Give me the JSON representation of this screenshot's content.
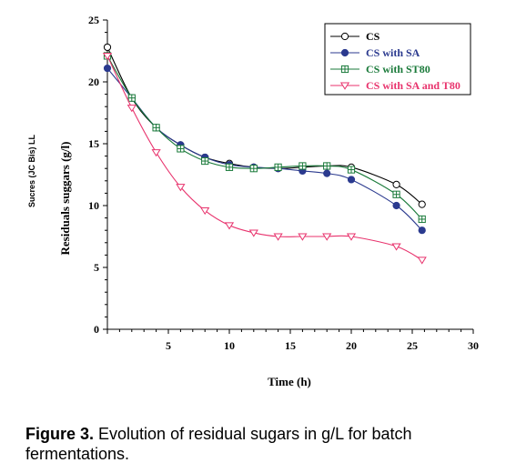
{
  "caption": {
    "label": "Figure 3.",
    "text": " Evolution of residual sugars in g/L for batch fermentations."
  },
  "chart_data": {
    "type": "line",
    "xlabel": "Time (h)",
    "ylabel": "Residuals suggars (g/l)",
    "side_label": "Sucres (JC Bis) LL",
    "xlim": [
      0,
      30
    ],
    "ylim": [
      0,
      25
    ],
    "xticks": [
      5,
      10,
      15,
      20,
      25,
      30
    ],
    "yticks": [
      0,
      5,
      10,
      15,
      20,
      25
    ],
    "legend_position": "top-right",
    "grid": false,
    "series": [
      {
        "name": "CS",
        "color": "#000000",
        "marker": "open-circle",
        "x": [
          0,
          2,
          4,
          6,
          8,
          10,
          12,
          14,
          16,
          18,
          20,
          23.7,
          25.8
        ],
        "y": [
          22.8,
          18.7,
          16.3,
          14.9,
          13.9,
          13.4,
          13.1,
          13.0,
          13.1,
          13.2,
          13.1,
          11.7,
          10.1
        ]
      },
      {
        "name": "CS with SA",
        "color": "#2b3a8f",
        "marker": "filled-circle",
        "x": [
          0,
          2,
          4,
          6,
          8,
          10,
          12,
          14,
          16,
          18,
          20,
          23.7,
          25.8
        ],
        "y": [
          21.1,
          18.7,
          16.3,
          14.9,
          13.9,
          13.3,
          13.1,
          13.0,
          12.8,
          12.6,
          12.1,
          10.0,
          8.0
        ]
      },
      {
        "name": "CS with ST80",
        "color": "#1a7a3a",
        "marker": "square-plus",
        "x": [
          0,
          2,
          4,
          6,
          8,
          10,
          12,
          14,
          16,
          18,
          20,
          23.7,
          25.8
        ],
        "y": [
          22.1,
          18.7,
          16.3,
          14.6,
          13.6,
          13.1,
          13.0,
          13.1,
          13.2,
          13.2,
          12.9,
          10.9,
          8.9
        ]
      },
      {
        "name": "CS with SA and T80",
        "color": "#e8336d",
        "marker": "open-triangle-down",
        "x": [
          0,
          2,
          4,
          6,
          8,
          10,
          12,
          14,
          16,
          18,
          20,
          23.7,
          25.8
        ],
        "y": [
          22.1,
          17.9,
          14.3,
          11.5,
          9.6,
          8.4,
          7.8,
          7.5,
          7.5,
          7.5,
          7.5,
          6.7,
          5.6
        ]
      }
    ]
  }
}
